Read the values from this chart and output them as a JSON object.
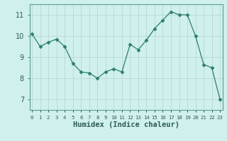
{
  "x": [
    0,
    1,
    2,
    3,
    4,
    5,
    6,
    7,
    8,
    9,
    10,
    11,
    12,
    13,
    14,
    15,
    16,
    17,
    18,
    19,
    20,
    21,
    22,
    23
  ],
  "y": [
    10.1,
    9.5,
    9.7,
    9.85,
    9.5,
    8.7,
    8.3,
    8.25,
    8.0,
    8.3,
    8.45,
    8.3,
    9.6,
    9.35,
    9.8,
    10.35,
    10.75,
    11.15,
    11.0,
    11.0,
    10.0,
    8.65,
    8.5,
    7.0
  ],
  "line_color": "#2e7d72",
  "marker": "D",
  "marker_size": 2.5,
  "bg_color": "#cff0ec",
  "grid_color_major": "#b8d8d4",
  "grid_color_minor": "#d8efec",
  "xlabel": "Humidex (Indice chaleur)",
  "ylim": [
    6.5,
    11.5
  ],
  "yticks": [
    7,
    8,
    9,
    10,
    11
  ],
  "xtick_labels": [
    "0",
    "1",
    "2",
    "3",
    "4",
    "5",
    "6",
    "7",
    "8",
    "9",
    "10",
    "11",
    "12",
    "13",
    "14",
    "15",
    "16",
    "17",
    "18",
    "19",
    "20",
    "21",
    "22",
    "23"
  ],
  "font_color": "#2e5c55",
  "spine_color": "#5a9c94"
}
